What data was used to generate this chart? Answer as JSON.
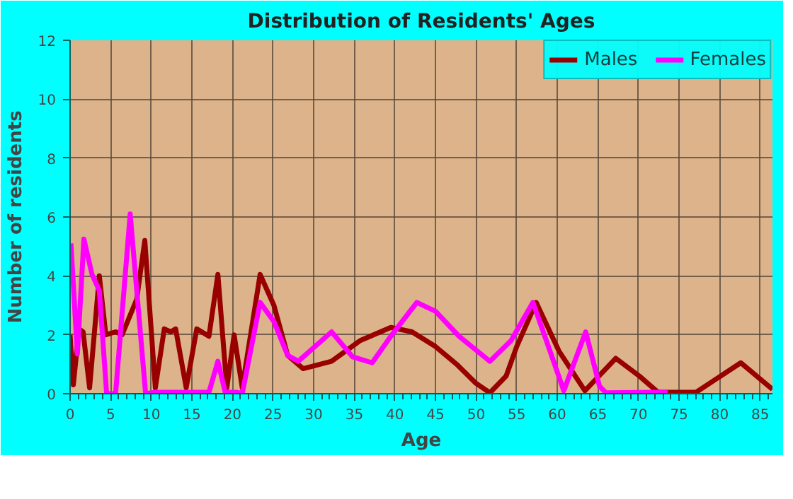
{
  "chart_data": {
    "type": "line",
    "title": "Distribution of Residents' Ages",
    "xlabel": "Age",
    "ylabel": "Number of residents",
    "xlim": [
      0,
      86.5
    ],
    "ylim": [
      0,
      12
    ],
    "xticks": [
      0,
      5,
      10,
      15,
      20,
      25,
      30,
      35,
      40,
      45,
      50,
      55,
      60,
      65,
      70,
      75,
      80,
      85
    ],
    "yticks": [
      0,
      2,
      4,
      6,
      8,
      10,
      12
    ],
    "grid": true,
    "legend": "top right",
    "marker": "none",
    "line_style": "solid",
    "series": [
      {
        "name": "Males",
        "color": "#990000",
        "x": [
          0,
          0.4,
          1.1,
          1.6,
          2.4,
          3.6,
          4.4,
          5.6,
          6.4,
          8.2,
          9.2,
          10.5,
          11.6,
          12.4,
          13,
          14.3,
          15.6,
          17.1,
          18.2,
          19.3,
          20.2,
          21.2,
          23.4,
          25.1,
          26.8,
          28.7,
          32.2,
          35.7,
          39.5,
          42.1,
          45,
          47.6,
          50,
          51.7,
          53.7,
          55,
          57.4,
          60.2,
          63.4,
          67.2,
          70.1,
          72.4,
          77.1,
          82.6,
          86.5
        ],
        "values": [
          2.0,
          0.3,
          2.2,
          2.1,
          0.2,
          4.0,
          2.0,
          2.1,
          2.0,
          3.2,
          5.2,
          0.2,
          2.2,
          2.1,
          2.2,
          0.2,
          2.2,
          1.95,
          4.05,
          0.2,
          2.0,
          0.2,
          4.05,
          3.0,
          1.3,
          0.85,
          1.1,
          1.8,
          2.25,
          2.1,
          1.6,
          1.0,
          0.35,
          0.03,
          0.6,
          1.6,
          3.1,
          1.45,
          0.1,
          1.2,
          0.6,
          0.05,
          0.05,
          1.05,
          0.15
        ]
      },
      {
        "name": "Females",
        "color": "#ff00ff",
        "x": [
          0.1,
          0.9,
          1.7,
          2.7,
          3.6,
          4.5,
          5.6,
          7.4,
          9.3,
          10.5,
          17.1,
          18.2,
          19.1,
          20.5,
          21.2,
          23.4,
          25.1,
          26.8,
          28.1,
          32.2,
          34.8,
          37.2,
          39.5,
          42.7,
          45,
          47.9,
          51.7,
          54.3,
          57,
          59.1,
          60.8,
          63.5,
          65.2,
          66,
          72.4,
          73.6
        ],
        "values": [
          5.1,
          1.35,
          5.25,
          4.05,
          3.5,
          0,
          0,
          6.1,
          0,
          0.05,
          0.05,
          1.1,
          0.05,
          0.05,
          0,
          3.1,
          2.45,
          1.3,
          1.1,
          2.1,
          1.25,
          1.05,
          1.95,
          3.1,
          2.8,
          1.95,
          1.1,
          1.8,
          3.1,
          1.45,
          0.1,
          2.1,
          0.25,
          0.03,
          0.05,
          0.03
        ]
      }
    ]
  }
}
